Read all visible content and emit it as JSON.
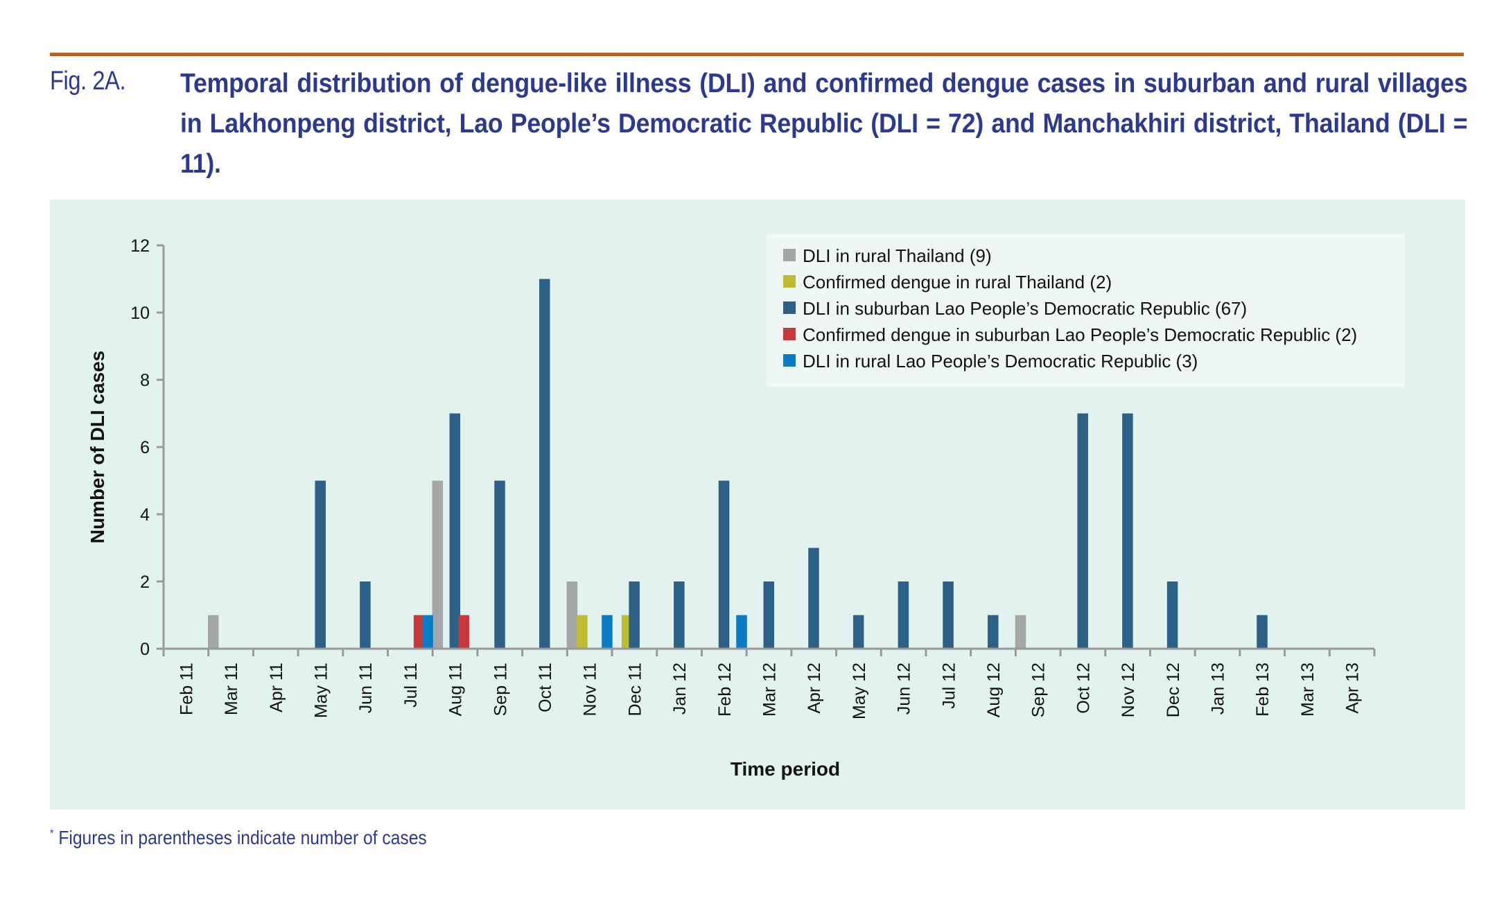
{
  "figure": {
    "label": "Fig. 2A.",
    "title": "Temporal distribution of dengue-like illness (DLI) and confirmed dengue cases in suburban and rural villages in Lakhonpeng district, Lao People’s Democratic Republic (DLI = 72) and Manchakhiri district, Thailand (DLI = 11).",
    "footnote_mark": "*",
    "footnote": " Figures in parentheses indicate number of cases"
  },
  "colors": {
    "rule": "#b8631e",
    "title_text": "#2b3990",
    "panel_bg": "#e2f2ef",
    "legend_bg": "#eef7f6",
    "axis": "#999999"
  },
  "chart_data": {
    "type": "bar",
    "title": "",
    "xlabel": "Time period",
    "ylabel": "Number of DLI cases",
    "ylim": [
      0,
      12
    ],
    "yticks": [
      0,
      2,
      4,
      6,
      8,
      10,
      12
    ],
    "grid": false,
    "legend_position": "top-right",
    "categories": [
      "Feb 11",
      "Mar 11",
      "Apr 11",
      "May 11",
      "Jun 11",
      "Jul 11",
      "Aug 11",
      "Sep 11",
      "Oct 11",
      "Nov 11",
      "Dec 11",
      "Jan 12",
      "Feb 12",
      "Mar 12",
      "Apr 12",
      "May 12",
      "Jun 12",
      "Jul 12",
      "Aug 12",
      "Sep 12",
      "Oct 12",
      "Nov 12",
      "Dec 12",
      "Jan 13",
      "Feb 13",
      "Mar 13",
      "Apr 13"
    ],
    "series": [
      {
        "name": "DLI in rural Thailand (9)",
        "color": "#a5a6a8",
        "values": [
          0,
          1,
          0,
          0,
          0,
          0,
          5,
          0,
          0,
          2,
          0,
          0,
          0,
          0,
          0,
          0,
          0,
          0,
          0,
          1,
          0,
          0,
          0,
          0,
          0,
          0,
          0
        ]
      },
      {
        "name": "Confirmed dengue in rural Thailand (2)",
        "color": "#bcbb31",
        "values": [
          0,
          0,
          0,
          0,
          0,
          0,
          0,
          0,
          0,
          1,
          1,
          0,
          0,
          0,
          0,
          0,
          0,
          0,
          0,
          0,
          0,
          0,
          0,
          0,
          0,
          0,
          0
        ]
      },
      {
        "name": "DLI in suburban Lao People’s Democratic Republic (67)",
        "color": "#2d6086",
        "values": [
          0,
          0,
          0,
          5,
          2,
          0,
          7,
          5,
          11,
          0,
          2,
          2,
          5,
          2,
          3,
          1,
          2,
          2,
          1,
          0,
          7,
          7,
          2,
          0,
          1,
          0,
          0
        ]
      },
      {
        "name": "Confirmed dengue in suburban Lao People’s Democratic Republic (2)",
        "color": "#c7393a",
        "values": [
          0,
          0,
          0,
          0,
          0,
          1,
          1,
          0,
          0,
          0,
          0,
          0,
          0,
          0,
          0,
          0,
          0,
          0,
          0,
          0,
          0,
          0,
          0,
          0,
          0,
          0,
          0
        ]
      },
      {
        "name": "DLI in rural Lao People’s Democratic Republic (3)",
        "color": "#0a7cc5",
        "values": [
          0,
          0,
          0,
          0,
          0,
          1,
          0,
          0,
          0,
          1,
          0,
          0,
          1,
          0,
          0,
          0,
          0,
          0,
          0,
          0,
          0,
          0,
          0,
          0,
          0,
          0,
          0
        ]
      }
    ]
  }
}
